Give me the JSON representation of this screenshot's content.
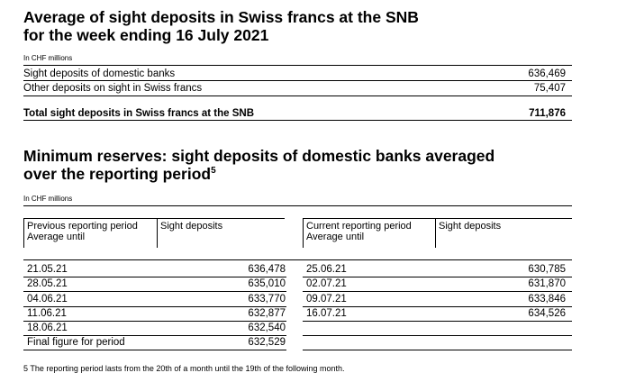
{
  "section1": {
    "title_line1": "Average of sight deposits in Swiss francs at the SNB",
    "title_line2": "for the week ending 16 July 2021",
    "unit": "In CHF millions",
    "rows": [
      {
        "label": "Sight deposits of domestic banks",
        "value": "636,469"
      },
      {
        "label": "Other deposits on sight in Swiss francs",
        "value": "75,407"
      }
    ],
    "total": {
      "label": "Total sight deposits in Swiss francs at the SNB",
      "value": "711,876"
    }
  },
  "section2": {
    "title_line1": "Minimum reserves: sight deposits of domestic banks averaged",
    "title_line2": "over the reporting period",
    "title_footnote_ref": "5",
    "unit": "In CHF millions",
    "headers": {
      "prev_period_line1": "Previous reporting period",
      "prev_period_line2": "Average until",
      "prev_sight": "Sight deposits",
      "curr_period_line1": "Current reporting period",
      "curr_period_line2": "Average until",
      "curr_sight": "Sight deposits"
    },
    "previous": [
      {
        "date": "21.05.21",
        "value": "636,478"
      },
      {
        "date": "28.05.21",
        "value": "635,010"
      },
      {
        "date": "04.06.21",
        "value": "633,770"
      },
      {
        "date": "11.06.21",
        "value": "632,877"
      },
      {
        "date": "18.06.21",
        "value": "632,540"
      },
      {
        "date": "Final figure for period",
        "value": "632,529"
      }
    ],
    "current": [
      {
        "date": "25.06.21",
        "value": "630,785"
      },
      {
        "date": "02.07.21",
        "value": "631,870"
      },
      {
        "date": "09.07.21",
        "value": "633,846"
      },
      {
        "date": "16.07.21",
        "value": "634,526"
      }
    ]
  },
  "footnote": "5  The reporting period lasts from the 20th of a month until the 19th of the following month."
}
